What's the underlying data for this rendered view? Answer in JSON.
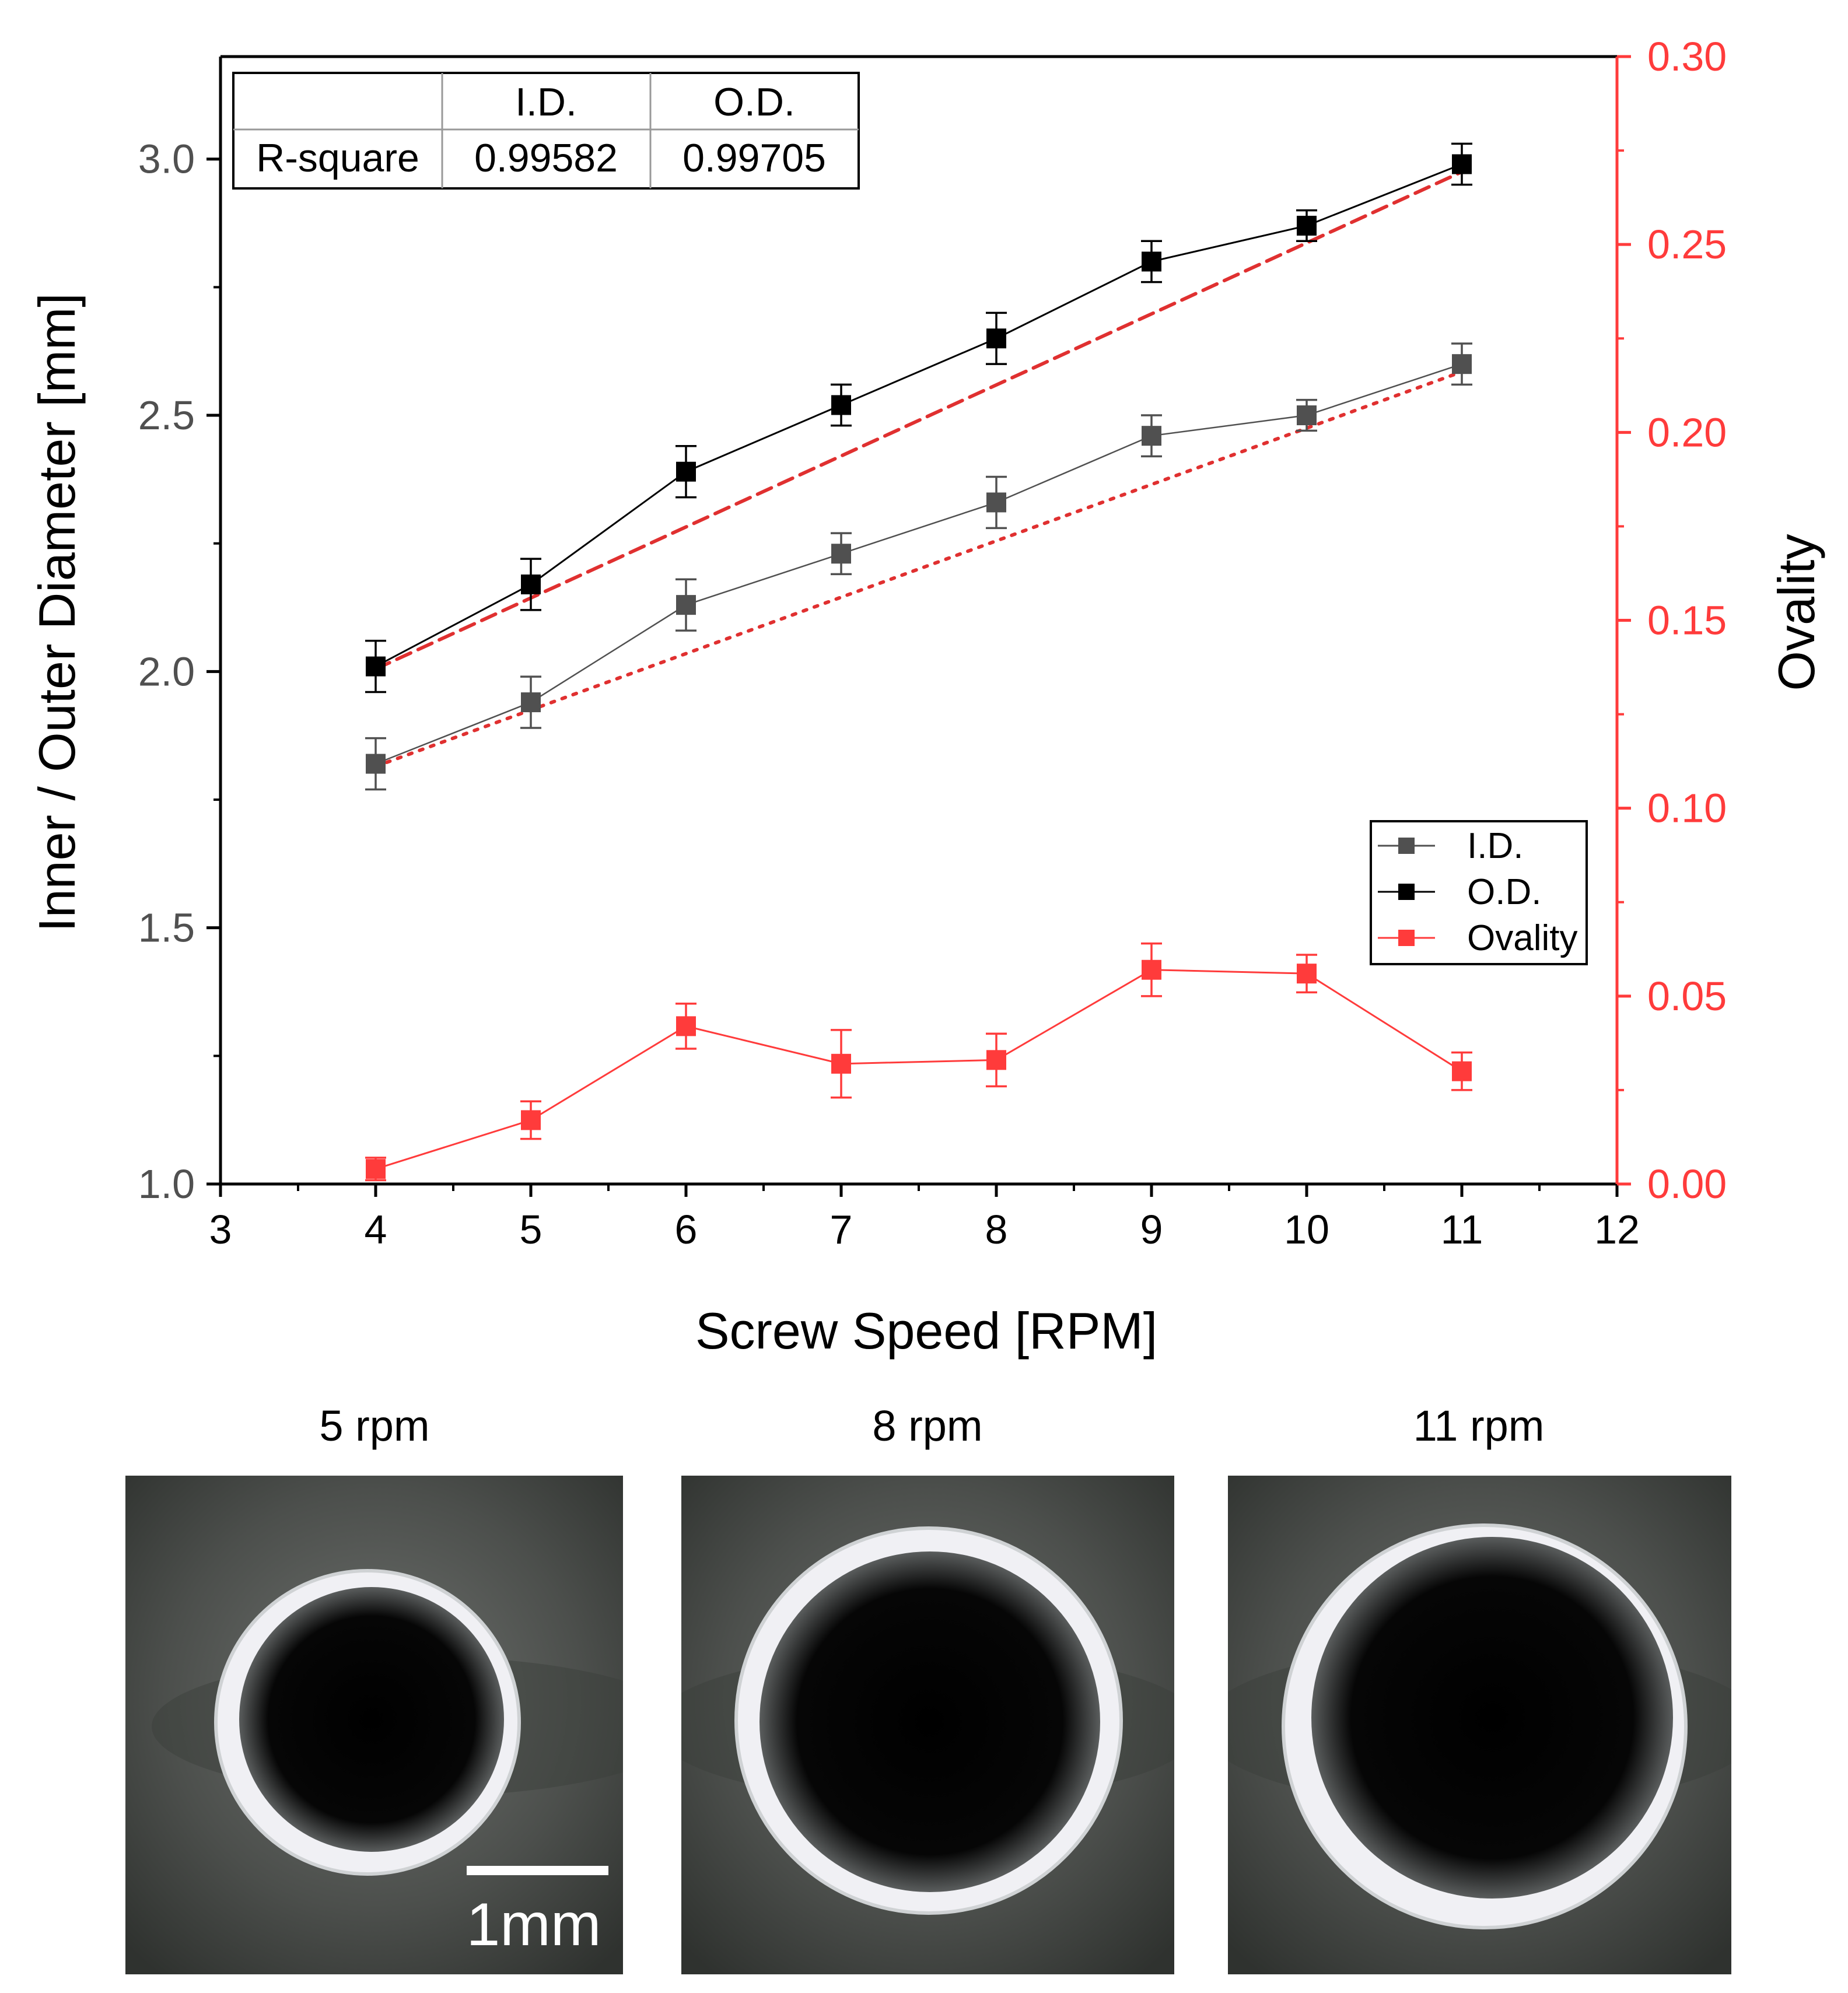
{
  "chart_data": {
    "type": "line",
    "x": [
      4,
      5,
      6,
      7,
      8,
      9,
      10,
      11
    ],
    "xlabel": "Screw Speed [RPM]",
    "ylabel": "Inner / Outer Diameter [mm]",
    "ylabel_right": "Ovality",
    "xlim": [
      3,
      12
    ],
    "ylim": [
      1.0,
      3.2
    ],
    "ylim_right": [
      0.0,
      0.3
    ],
    "x_ticks": [
      "3",
      "4",
      "5",
      "6",
      "7",
      "8",
      "9",
      "10",
      "11",
      "12"
    ],
    "y_ticks": [
      "1.0",
      "1.5",
      "2.0",
      "2.5",
      "3.0"
    ],
    "y_right_ticks": [
      "0.00",
      "0.05",
      "0.10",
      "0.15",
      "0.20",
      "0.25",
      "0.30"
    ],
    "series": [
      {
        "name": "I.D.",
        "axis": "left",
        "color": "#505050",
        "values": [
          1.82,
          1.94,
          2.13,
          2.23,
          2.33,
          2.46,
          2.5,
          2.6
        ],
        "errors": [
          0.05,
          0.05,
          0.05,
          0.04,
          0.05,
          0.04,
          0.03,
          0.04
        ]
      },
      {
        "name": "O.D.",
        "axis": "left",
        "color": "#000000",
        "values": [
          2.01,
          2.17,
          2.39,
          2.52,
          2.65,
          2.8,
          2.87,
          2.99
        ],
        "errors": [
          0.05,
          0.05,
          0.05,
          0.04,
          0.05,
          0.04,
          0.03,
          0.04
        ]
      },
      {
        "name": "Ovality",
        "axis": "right",
        "color": "#ff3b3b",
        "values": [
          0.004,
          0.017,
          0.042,
          0.032,
          0.033,
          0.057,
          0.056,
          0.03
        ],
        "errors": [
          0.003,
          0.005,
          0.006,
          0.009,
          0.007,
          0.007,
          0.005,
          0.005
        ]
      }
    ],
    "fits": [
      {
        "name": "I.D. fit",
        "style": "dotted",
        "color": "#e03030",
        "x": [
          4,
          11
        ],
        "values": [
          1.815,
          2.585
        ]
      },
      {
        "name": "O.D. fit",
        "style": "dashed",
        "color": "#e03030",
        "x": [
          4,
          11
        ],
        "values": [
          2.005,
          2.975
        ]
      }
    ],
    "table": {
      "headers": [
        "",
        "I.D.",
        "O.D."
      ],
      "rows": [
        [
          "R-square",
          "0.99582",
          "0.99705"
        ]
      ]
    },
    "legend": {
      "position": "right-middle",
      "entries": [
        "I.D.",
        "O.D.",
        "Ovality"
      ]
    }
  },
  "photos": {
    "items": [
      {
        "label": "5 rpm",
        "speed": 5
      },
      {
        "label": "8 rpm",
        "speed": 8
      },
      {
        "label": "11 rpm",
        "speed": 11
      }
    ],
    "scale_bar_label": "1mm"
  },
  "colors": {
    "axis_right": "#ff3b3b",
    "fit": "#e03030",
    "left_tick_text": "#505050",
    "photo_bg": "#4a4d4a",
    "tube_wall": "#eeeef2"
  }
}
